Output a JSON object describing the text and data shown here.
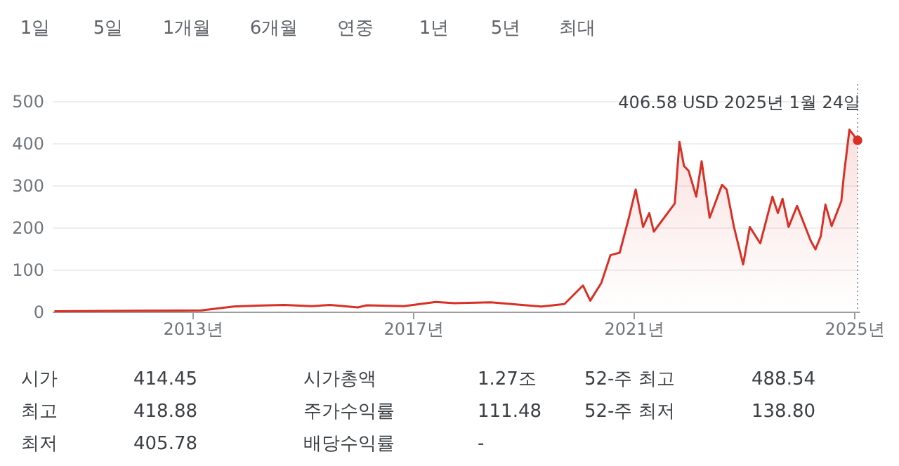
{
  "chart_data": {
    "type": "area",
    "x": [
      "2010-07-01",
      "2012-01-01",
      "2013-03-01",
      "2013-10-01",
      "2014-03-01",
      "2014-09-01",
      "2015-03-01",
      "2015-07-01",
      "2016-01-01",
      "2016-03-01",
      "2016-11-01",
      "2017-06-01",
      "2017-10-01",
      "2018-06-01",
      "2019-05-01",
      "2019-10-01",
      "2020-02-01",
      "2020-03-20",
      "2020-06-01",
      "2020-08-01",
      "2020-10-01",
      "2020-12-01",
      "2021-01-15",
      "2021-03-05",
      "2021-04-15",
      "2021-05-15",
      "2021-10-01",
      "2021-11-01",
      "2021-12-01",
      "2022-01-01",
      "2022-02-20",
      "2022-03-28",
      "2022-05-20",
      "2022-08-10",
      "2022-09-10",
      "2022-10-28",
      "2022-12-28",
      "2023-02-10",
      "2023-04-20",
      "2023-07-10",
      "2023-08-15",
      "2023-09-15",
      "2023-10-25",
      "2023-12-20",
      "2024-03-20",
      "2024-04-20",
      "2024-05-25",
      "2024-06-25",
      "2024-08-05",
      "2024-10-08",
      "2024-10-25",
      "2024-12-01",
      "2024-12-31",
      "2025-01-24"
    ],
    "series": [
      {
        "color": "#d93025",
        "values": [
          1,
          2,
          3,
          12,
          14,
          16,
          13,
          16,
          10,
          15,
          13,
          23,
          20,
          22,
          12,
          18,
          62,
          26,
          68,
          134,
          140,
          223,
          290,
          201,
          234,
          190,
          257,
          403,
          346,
          334,
          273,
          357,
          223,
          301,
          290,
          201,
          112,
          201,
          162,
          273,
          234,
          268,
          201,
          251,
          168,
          148,
          179,
          254,
          203,
          262,
          323,
          432,
          418,
          406.58
        ]
      }
    ],
    "xlim": [
      "2010-06-15",
      "2025-02-05"
    ],
    "xticks": [
      {
        "value": "2013-01-01",
        "label": "2013년"
      },
      {
        "value": "2017-01-01",
        "label": "2017년"
      },
      {
        "value": "2021-01-01",
        "label": "2021년"
      },
      {
        "value": "2025-01-01",
        "label": "2025년"
      }
    ],
    "ylim": [
      0,
      500
    ],
    "yticks": [
      0,
      100,
      200,
      300,
      400,
      500
    ],
    "grid": "y",
    "ref_lines": [
      {
        "axis": "x",
        "value": "2025-01-24",
        "label": null,
        "color": "#9aa0a6",
        "line_style": "dotted"
      }
    ],
    "annotations": [
      "1일",
      "5일",
      "1개월",
      "6개월",
      "연중",
      "1년",
      "5년",
      "최대",
      {
        "text": "406.58 USD  2025년 1월 24일",
        "x": "2025-01-24",
        "y": 406.58
      },
      "시가",
      "414.45",
      "시가총액",
      "1.27조",
      "52-주 최고",
      "488.54",
      "최고",
      "418.88",
      "주가수익률",
      "111.48",
      "52-주 최저",
      "138.80",
      "최저",
      "405.78",
      "배당수익률",
      "-"
    ]
  }
}
